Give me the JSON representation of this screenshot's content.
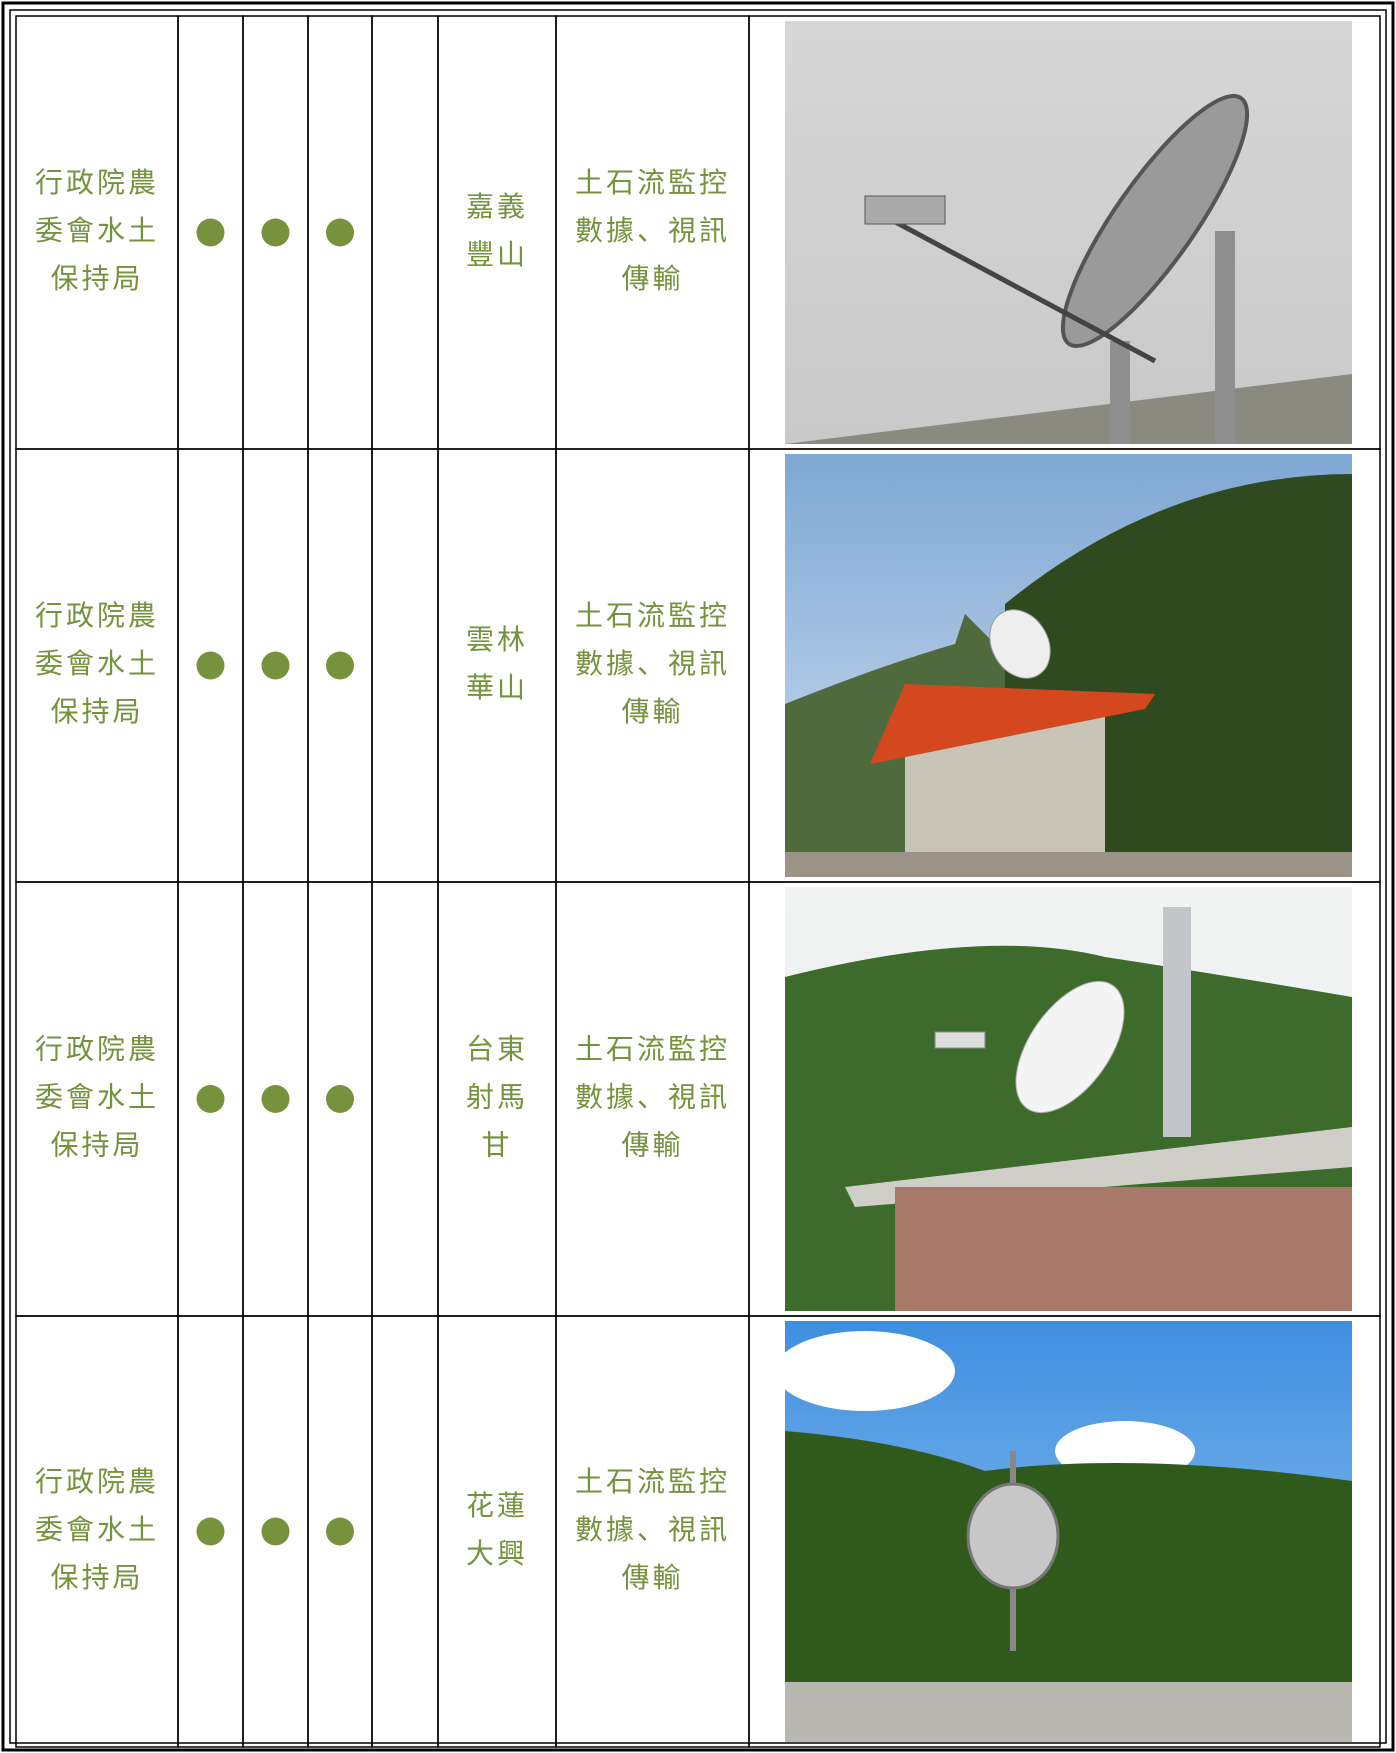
{
  "table": {
    "rows": [
      {
        "org": [
          "行政院農",
          "委會水土",
          "保持局"
        ],
        "location": [
          "嘉義",
          "豐山"
        ],
        "usage": [
          "土石流監控",
          "數據、視訊",
          "傳輸"
        ]
      },
      {
        "org": [
          "行政院農",
          "委會水土",
          "保持局"
        ],
        "location": [
          "雲林",
          "華山"
        ],
        "usage": [
          "土石流監控",
          "數據、視訊",
          "傳輸"
        ]
      },
      {
        "org": [
          "行政院農",
          "委會水土",
          "保持局"
        ],
        "location": [
          "台東",
          "射馬",
          "甘"
        ],
        "usage": [
          "土石流監控",
          "數據、視訊",
          "傳輸"
        ]
      },
      {
        "org": [
          "行政院農",
          "委會水土",
          "保持局"
        ],
        "location": [
          "花蓮",
          "大興"
        ],
        "usage": [
          "土石流監控",
          "數據、視訊",
          "傳輸"
        ]
      }
    ]
  }
}
